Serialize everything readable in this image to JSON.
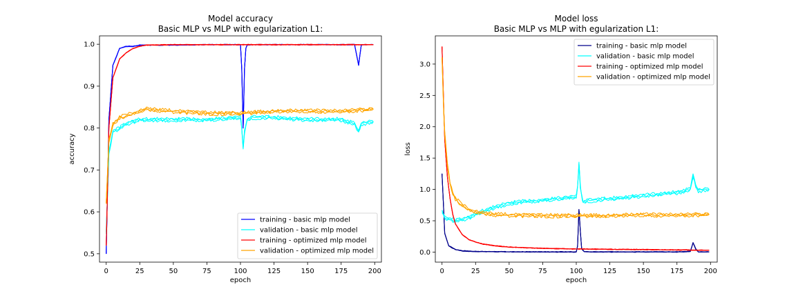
{
  "chart_data": [
    {
      "type": "line",
      "title": "Model accuracy",
      "subtitle": "Basic MLP vs MLP with egularization L1:",
      "xlabel": "epoch",
      "ylabel": "accuracy",
      "xlim": [
        -5,
        205
      ],
      "ylim": [
        0.48,
        1.02
      ],
      "xticks": [
        0,
        25,
        50,
        75,
        100,
        125,
        150,
        175,
        200
      ],
      "yticks": [
        0.5,
        0.6,
        0.7,
        0.8,
        0.9,
        1.0
      ],
      "ytick_labels": [
        "0.5",
        "0.6",
        "0.7",
        "0.8",
        "0.9",
        "1.0"
      ],
      "legend_position": "lower-right",
      "grid": false,
      "series": [
        {
          "name": "training - basic mlp model",
          "color": "#0000ff",
          "runs": 3,
          "x": [
            0,
            2,
            5,
            10,
            15,
            20,
            25,
            50,
            75,
            100,
            101,
            102,
            103,
            104,
            105,
            110,
            125,
            150,
            175,
            185,
            188,
            190,
            199
          ],
          "y": [
            0.5,
            0.82,
            0.95,
            0.99,
            0.995,
            0.995,
            0.998,
            0.998,
            0.999,
            0.999,
            0.94,
            0.8,
            0.94,
            0.99,
            0.998,
            0.999,
            0.999,
            0.999,
            0.999,
            0.999,
            0.95,
            0.999,
            0.999
          ]
        },
        {
          "name": "validation - basic mlp model",
          "color": "#00ffff",
          "runs": 3,
          "x": [
            0,
            2,
            5,
            10,
            15,
            20,
            25,
            50,
            75,
            100,
            101,
            102,
            103,
            105,
            110,
            125,
            150,
            175,
            185,
            188,
            190,
            199
          ],
          "y": [
            0.55,
            0.74,
            0.79,
            0.8,
            0.81,
            0.815,
            0.82,
            0.82,
            0.82,
            0.825,
            0.8,
            0.75,
            0.79,
            0.82,
            0.825,
            0.825,
            0.82,
            0.82,
            0.81,
            0.79,
            0.81,
            0.815
          ]
        },
        {
          "name": "training - optimized mlp model",
          "color": "#ff0000",
          "runs": 3,
          "x": [
            0,
            2,
            5,
            10,
            15,
            20,
            25,
            30,
            50,
            75,
            100,
            125,
            150,
            175,
            199
          ],
          "y": [
            0.52,
            0.8,
            0.92,
            0.965,
            0.98,
            0.99,
            0.995,
            0.998,
            0.999,
            0.999,
            0.999,
            0.999,
            0.999,
            0.999,
            0.999
          ]
        },
        {
          "name": "validation - optimized mlp model",
          "color": "#ffa500",
          "runs": 3,
          "x": [
            0,
            2,
            5,
            10,
            15,
            20,
            25,
            30,
            50,
            75,
            100,
            125,
            150,
            175,
            199
          ],
          "y": [
            0.62,
            0.77,
            0.81,
            0.825,
            0.83,
            0.835,
            0.84,
            0.845,
            0.84,
            0.835,
            0.835,
            0.84,
            0.84,
            0.84,
            0.845
          ]
        }
      ]
    },
    {
      "type": "line",
      "title": "Model loss",
      "subtitle": "Basic MLP vs MLP with egularization L1:",
      "xlabel": "epoch",
      "ylabel": "loss",
      "xlim": [
        -5,
        205
      ],
      "ylim": [
        -0.16,
        3.45
      ],
      "xticks": [
        0,
        25,
        50,
        75,
        100,
        125,
        150,
        175,
        200
      ],
      "yticks": [
        0.0,
        0.5,
        1.0,
        1.5,
        2.0,
        2.5,
        3.0
      ],
      "ytick_labels": [
        "0.0",
        "0.5",
        "1.0",
        "1.5",
        "2.0",
        "2.5",
        "3.0"
      ],
      "legend_position": "top-right",
      "grid": false,
      "series": [
        {
          "name": "training - basic mlp model",
          "color": "#00008b",
          "runs": 3,
          "x": [
            0,
            2,
            5,
            10,
            15,
            20,
            25,
            50,
            75,
            100,
            101,
            102,
            103,
            104,
            106,
            110,
            125,
            150,
            175,
            185,
            187,
            189,
            191,
            199
          ],
          "y": [
            1.25,
            0.3,
            0.1,
            0.04,
            0.02,
            0.015,
            0.01,
            0.005,
            0.003,
            0.003,
            0.1,
            0.68,
            0.35,
            0.05,
            0.005,
            0.003,
            0.003,
            0.003,
            0.003,
            0.01,
            0.15,
            0.05,
            0.003,
            0.003
          ]
        },
        {
          "name": "validation - basic mlp model",
          "color": "#00ffff",
          "runs": 3,
          "x": [
            0,
            2,
            5,
            10,
            15,
            20,
            25,
            30,
            40,
            50,
            75,
            100,
            101,
            102,
            103,
            104,
            105,
            110,
            125,
            150,
            175,
            185,
            187,
            189,
            191,
            199
          ],
          "y": [
            0.65,
            0.55,
            0.52,
            0.5,
            0.52,
            0.55,
            0.6,
            0.65,
            0.72,
            0.78,
            0.83,
            0.88,
            1.05,
            1.4,
            1.05,
            0.9,
            0.8,
            0.82,
            0.85,
            0.9,
            0.95,
            1.0,
            1.22,
            1.05,
            0.98,
            1.0
          ]
        },
        {
          "name": "training - optimized mlp model",
          "color": "#ff0000",
          "runs": 3,
          "x": [
            0,
            1,
            2,
            4,
            6,
            8,
            10,
            15,
            20,
            25,
            30,
            40,
            50,
            75,
            100,
            125,
            150,
            175,
            199
          ],
          "y": [
            3.28,
            2.5,
            1.8,
            1.2,
            0.85,
            0.6,
            0.45,
            0.28,
            0.2,
            0.16,
            0.13,
            0.1,
            0.08,
            0.06,
            0.05,
            0.045,
            0.04,
            0.035,
            0.03
          ]
        },
        {
          "name": "validation - optimized mlp model",
          "color": "#ffa500",
          "runs": 3,
          "x": [
            0,
            1,
            2,
            4,
            6,
            8,
            10,
            15,
            20,
            25,
            30,
            40,
            50,
            75,
            100,
            125,
            150,
            175,
            199
          ],
          "y": [
            3.1,
            2.4,
            1.9,
            1.4,
            1.1,
            0.95,
            0.85,
            0.75,
            0.68,
            0.64,
            0.62,
            0.6,
            0.59,
            0.58,
            0.58,
            0.58,
            0.59,
            0.59,
            0.6
          ]
        }
      ]
    }
  ]
}
